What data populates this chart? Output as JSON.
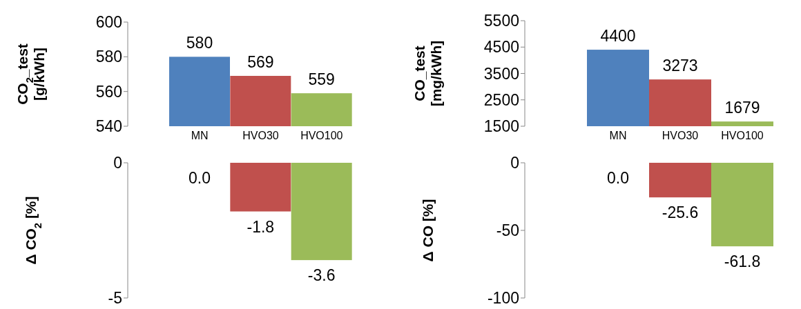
{
  "chart_data": [
    {
      "type": "bar",
      "ylabel": "CO$_{2}$_test\n[g/kWh]",
      "categories": [
        "MN",
        "HVO30",
        "HVO100"
      ],
      "values": [
        580,
        569,
        559
      ],
      "colors": [
        "#4f81bd",
        "#c0504d",
        "#9bbb59"
      ],
      "ylim": [
        540,
        600
      ],
      "yticks": [
        540,
        560,
        580,
        600
      ],
      "data_labels": true,
      "grid": false,
      "legend": false
    },
    {
      "type": "bar",
      "ylabel": "CO_test\n[mg/kWh]",
      "categories": [
        "MN",
        "HVO30",
        "HVO100"
      ],
      "values": [
        4400,
        3273,
        1679
      ],
      "colors": [
        "#4f81bd",
        "#c0504d",
        "#9bbb59"
      ],
      "ylim": [
        1500,
        5500
      ],
      "yticks": [
        1500,
        2500,
        3500,
        4500,
        5500
      ],
      "data_labels": true,
      "grid": false,
      "legend": false
    },
    {
      "type": "bar",
      "ylabel": "Δ CO$_{2}$ [%]",
      "categories": [
        null,
        null,
        null
      ],
      "values": [
        0,
        -1.8,
        -3.6
      ],
      "value_labels": [
        "0.0",
        "-1.8",
        "-3.6"
      ],
      "colors": [
        "#4f81bd",
        "#c0504d",
        "#9bbb59"
      ],
      "ylim": [
        -5,
        0
      ],
      "yticks": [
        -5,
        0
      ],
      "tick_labels": "y",
      "grid": false,
      "legend": false
    },
    {
      "type": "bar",
      "ylabel": "Δ CO [%]",
      "categories": [
        null,
        null,
        null
      ],
      "values": [
        0,
        -25.6,
        -61.8
      ],
      "value_labels": [
        "0.0",
        "-25.6",
        "-61.8"
      ],
      "colors": [
        "#4f81bd",
        "#c0504d",
        "#9bbb59"
      ],
      "ylim": [
        -100,
        0
      ],
      "yticks": [
        -100,
        -50,
        0
      ],
      "tick_labels": "y",
      "grid": false,
      "legend": false
    }
  ]
}
